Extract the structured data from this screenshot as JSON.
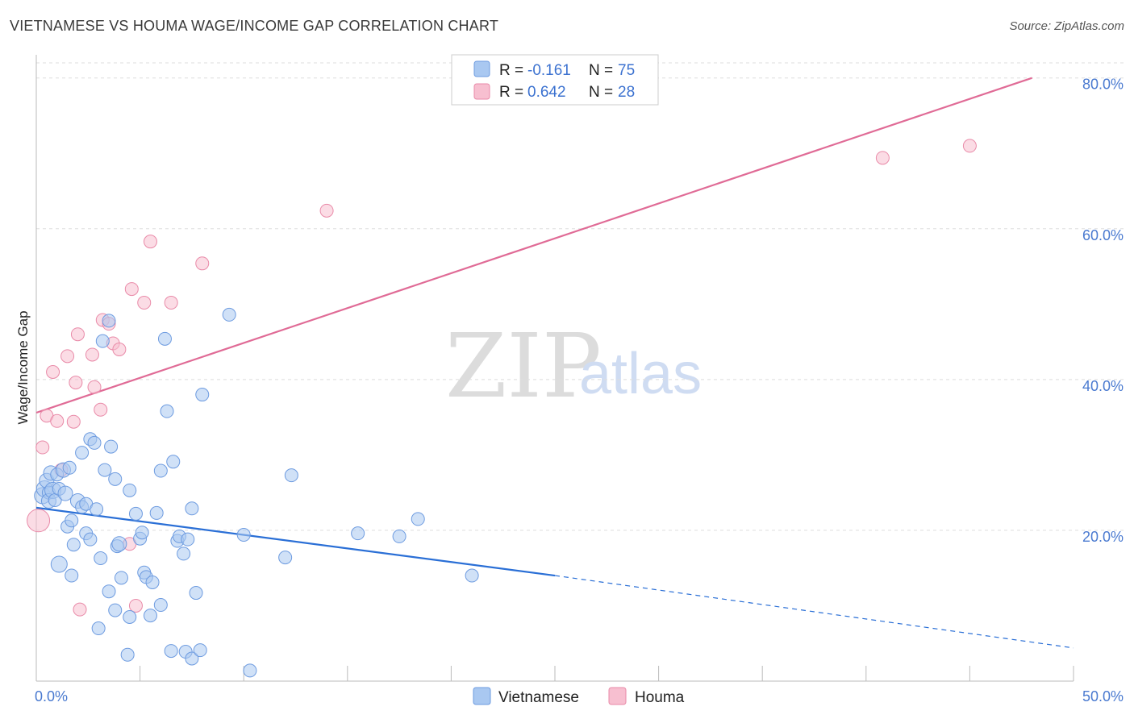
{
  "title": "VIETNAMESE VS HOUMA WAGE/INCOME GAP CORRELATION CHART",
  "source": "Source: ZipAtlas.com",
  "colors": {
    "vietnamese_fill": "#a9c8f1",
    "vietnamese_stroke": "#6d9be0",
    "vietnamese_line": "#2a6fd6",
    "houma_fill": "#f7bfd0",
    "houma_stroke": "#e98aa8",
    "houma_line": "#e06b96",
    "grid": "#dddddd",
    "axis": "#bbbbbb"
  },
  "legend": {
    "row1": {
      "r_label": "R =",
      "r_value": "-0.161",
      "n_label": "N =",
      "n_value": "75"
    },
    "row2": {
      "r_label": "R =",
      "r_value": "0.642",
      "n_label": "N =",
      "n_value": "28"
    }
  },
  "watermark": {
    "zip": "ZIP",
    "atlas": "atlas"
  },
  "chart_data": {
    "type": "scatter",
    "title": "VIETNAMESE VS HOUMA WAGE/INCOME GAP CORRELATION CHART",
    "xlabel": "",
    "ylabel": "Wage/Income Gap",
    "xlim": [
      0,
      50
    ],
    "ylim": [
      0,
      82
    ],
    "x_tick_labels": [
      "0.0%",
      "50.0%"
    ],
    "y_ticks": [
      20,
      40,
      60,
      80
    ],
    "y_tick_labels": [
      "20.0%",
      "40.0%",
      "60.0%",
      "80.0%"
    ],
    "grid": true,
    "legend_position": "top-center",
    "series": [
      {
        "name": "Vietnamese",
        "R": -0.161,
        "N": 75,
        "trend": {
          "x0": 0,
          "y0": 23.0,
          "x1": 25,
          "y1": 14.0,
          "dashed_to_x": 50,
          "dashed_to_y": 4.4
        },
        "points": [
          [
            0.3,
            24.6,
            10
          ],
          [
            0.4,
            25.5,
            10
          ],
          [
            0.5,
            26.6,
            9
          ],
          [
            0.6,
            25.0,
            8
          ],
          [
            0.7,
            27.6,
            9
          ],
          [
            0.6,
            23.9,
            9
          ],
          [
            0.8,
            25.3,
            10
          ],
          [
            0.9,
            24.0,
            8
          ],
          [
            1.0,
            27.4,
            8
          ],
          [
            1.1,
            25.5,
            8
          ],
          [
            1.3,
            28.0,
            9
          ],
          [
            1.4,
            24.9,
            9
          ],
          [
            1.5,
            20.5,
            8
          ],
          [
            1.6,
            28.3,
            8
          ],
          [
            1.7,
            21.3,
            8
          ],
          [
            1.8,
            18.1,
            8
          ],
          [
            1.1,
            15.5,
            10
          ],
          [
            1.7,
            14.0,
            8
          ],
          [
            2.0,
            23.9,
            9
          ],
          [
            2.2,
            23.1,
            8
          ],
          [
            2.4,
            23.5,
            8
          ],
          [
            2.2,
            30.3,
            8
          ],
          [
            2.4,
            19.6,
            8
          ],
          [
            2.6,
            18.8,
            8
          ],
          [
            2.6,
            32.1,
            8
          ],
          [
            2.8,
            31.6,
            8
          ],
          [
            2.9,
            22.8,
            8
          ],
          [
            3.1,
            16.3,
            8
          ],
          [
            3.2,
            45.1,
            8
          ],
          [
            3.3,
            28.0,
            8
          ],
          [
            3.5,
            47.8,
            8
          ],
          [
            3.6,
            31.1,
            8
          ],
          [
            3.8,
            26.8,
            8
          ],
          [
            3.9,
            17.9,
            8
          ],
          [
            4.0,
            18.2,
            9
          ],
          [
            3.5,
            11.9,
            8
          ],
          [
            3.8,
            9.4,
            8
          ],
          [
            4.1,
            13.7,
            8
          ],
          [
            4.5,
            25.3,
            8
          ],
          [
            4.8,
            22.2,
            8
          ],
          [
            5.0,
            18.9,
            8
          ],
          [
            5.1,
            19.7,
            8
          ],
          [
            5.2,
            14.4,
            8
          ],
          [
            5.3,
            13.8,
            8
          ],
          [
            5.6,
            13.1,
            8
          ],
          [
            5.8,
            22.3,
            8
          ],
          [
            6.0,
            27.9,
            8
          ],
          [
            6.2,
            45.4,
            8
          ],
          [
            6.3,
            35.8,
            8
          ],
          [
            6.6,
            29.1,
            8
          ],
          [
            6.8,
            18.6,
            8
          ],
          [
            6.9,
            19.2,
            8
          ],
          [
            7.1,
            16.9,
            8
          ],
          [
            7.3,
            18.8,
            8
          ],
          [
            7.5,
            22.9,
            8
          ],
          [
            7.7,
            11.7,
            8
          ],
          [
            3.0,
            7.0,
            8
          ],
          [
            4.5,
            8.5,
            8
          ],
          [
            4.4,
            3.5,
            8
          ],
          [
            5.5,
            8.7,
            8
          ],
          [
            6.0,
            10.1,
            8
          ],
          [
            6.5,
            4.0,
            8
          ],
          [
            7.2,
            3.9,
            8
          ],
          [
            7.5,
            3.0,
            8
          ],
          [
            7.9,
            4.1,
            8
          ],
          [
            8.0,
            38.0,
            8
          ],
          [
            9.3,
            48.6,
            8
          ],
          [
            10.0,
            19.4,
            8
          ],
          [
            10.3,
            1.4,
            8
          ],
          [
            12.0,
            16.4,
            8
          ],
          [
            12.3,
            27.3,
            8
          ],
          [
            15.5,
            19.6,
            8
          ],
          [
            17.5,
            19.2,
            8
          ],
          [
            18.4,
            21.5,
            8
          ],
          [
            21.0,
            14.0,
            8
          ]
        ]
      },
      {
        "name": "Houma",
        "R": 0.642,
        "N": 28,
        "trend": {
          "x0": 0,
          "y0": 35.6,
          "x1": 48,
          "y1": 80.0
        },
        "points": [
          [
            0.1,
            21.3,
            14
          ],
          [
            0.3,
            31.0,
            8
          ],
          [
            0.5,
            35.2,
            8
          ],
          [
            0.8,
            41.0,
            8
          ],
          [
            1.0,
            34.5,
            8
          ],
          [
            1.2,
            28.0,
            8
          ],
          [
            1.5,
            43.1,
            8
          ],
          [
            1.8,
            34.4,
            8
          ],
          [
            1.9,
            39.6,
            8
          ],
          [
            2.0,
            46.0,
            8
          ],
          [
            2.1,
            9.5,
            8
          ],
          [
            2.7,
            43.3,
            8
          ],
          [
            2.8,
            39.0,
            8
          ],
          [
            3.1,
            36.0,
            8
          ],
          [
            3.2,
            47.9,
            8
          ],
          [
            3.5,
            47.4,
            8
          ],
          [
            3.7,
            44.8,
            8
          ],
          [
            4.0,
            44.0,
            8
          ],
          [
            4.5,
            18.2,
            8
          ],
          [
            4.8,
            10.0,
            8
          ],
          [
            4.6,
            52.0,
            8
          ],
          [
            5.2,
            50.2,
            8
          ],
          [
            5.5,
            58.3,
            8
          ],
          [
            6.5,
            50.2,
            8
          ],
          [
            8.0,
            55.4,
            8
          ],
          [
            14.0,
            62.4,
            8
          ],
          [
            40.8,
            69.4,
            8
          ],
          [
            45.0,
            71.0,
            8
          ]
        ]
      }
    ]
  },
  "bottom_legend": [
    "Vietnamese",
    "Houma"
  ]
}
